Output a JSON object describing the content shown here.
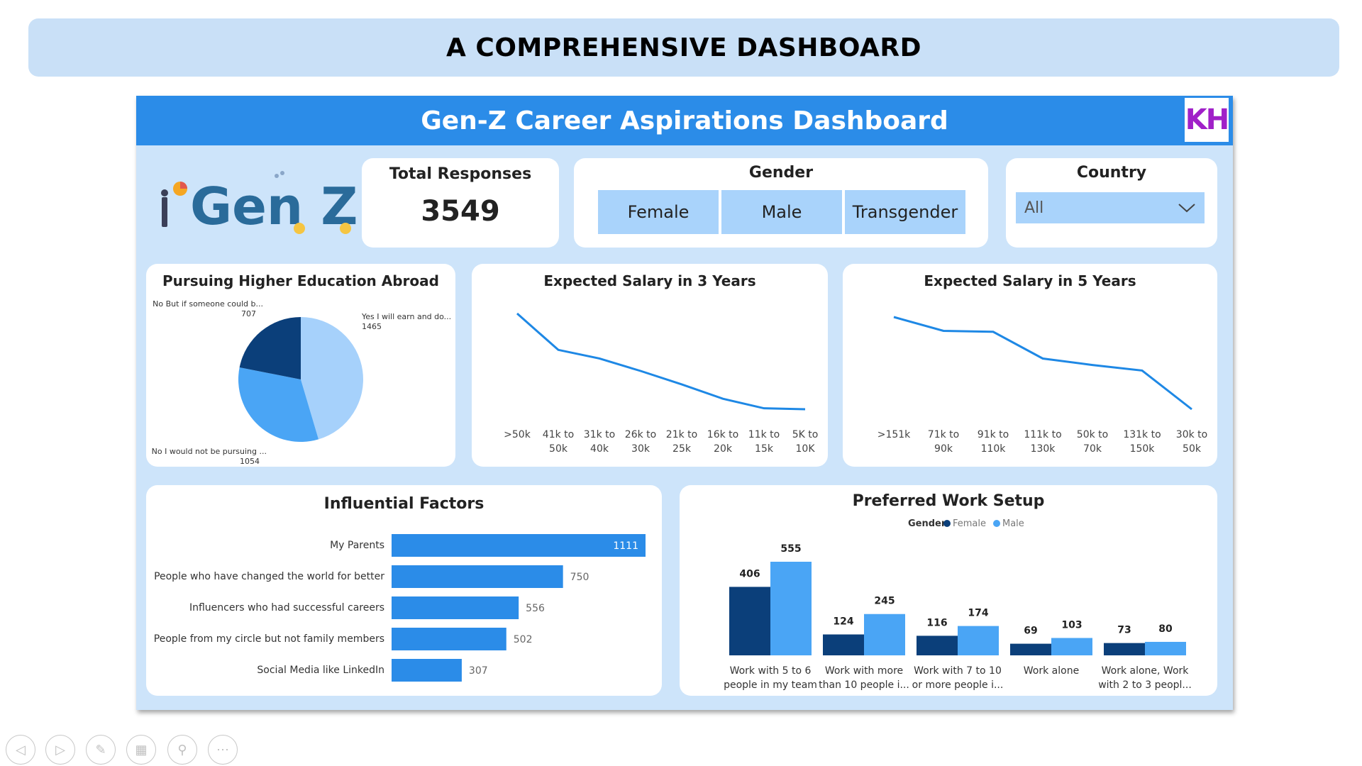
{
  "slide_title": "A COMPREHENSIVE DASHBOARD",
  "dashboard": {
    "title": "Gen-Z Career Aspirations Dashboard",
    "logo_text": "KH",
    "genz_logo_text": "Gen Z"
  },
  "kpi": {
    "label": "Total Responses",
    "value": "3549"
  },
  "gender_slicer": {
    "label": "Gender",
    "options": [
      "Female",
      "Male",
      "Transgender"
    ]
  },
  "country_slicer": {
    "label": "Country",
    "selected": "All"
  },
  "colors": {
    "dark": "#0b3f7a",
    "mid": "#2b8ce8",
    "light": "#4aa5f5",
    "pale": "#a6d1fb",
    "line": "#1e88e5"
  },
  "chart_data": [
    {
      "type": "pie",
      "title": "Pursuing Higher Education Abroad",
      "slices": [
        {
          "label": "Yes I will earn and do...",
          "value": 1465
        },
        {
          "label": "No I would not be pursuing ...",
          "value": 1054
        },
        {
          "label": "No But if someone could b...",
          "value": 707
        }
      ]
    },
    {
      "type": "line",
      "title": "Expected Salary in 3 Years",
      "categories": [
        ">50k",
        "41k to 50k",
        "31k to 40k",
        "26k to 30k",
        "21k to 25k",
        "16k to 20k",
        "11k to 15k",
        "5K to 10K"
      ],
      "values": [
        100,
        62,
        53,
        40,
        26,
        11,
        1,
        0
      ]
    },
    {
      "type": "line",
      "title": "Expected Salary in 5 Years",
      "categories": [
        ">151k",
        "71k to 90k",
        "91k to 110k",
        "111k to 130k",
        "50k to 70k",
        "131k to 150k",
        "30k to 50k"
      ],
      "values": [
        100,
        85,
        84,
        55,
        48,
        42,
        0
      ]
    },
    {
      "type": "bar",
      "orientation": "horizontal",
      "title": "Influential Factors",
      "categories": [
        "My Parents",
        "People who have changed the world for better",
        "Influencers who had successful careers",
        "People from my circle but not family members",
        "Social Media like LinkedIn"
      ],
      "values": [
        1111,
        750,
        556,
        502,
        307
      ]
    },
    {
      "type": "bar",
      "title": "Preferred Work Setup",
      "legend_title": "Gender",
      "categories": [
        "Work with 5 to 6 people in my team",
        "Work with more than 10 people i...",
        "Work with 7 to 10 or more people i...",
        "Work alone",
        "Work alone, Work with 2 to 3 peopl..."
      ],
      "series": [
        {
          "name": "Female",
          "values": [
            406,
            124,
            116,
            69,
            73
          ]
        },
        {
          "name": "Male",
          "values": [
            555,
            245,
            174,
            103,
            80
          ]
        }
      ]
    }
  ]
}
